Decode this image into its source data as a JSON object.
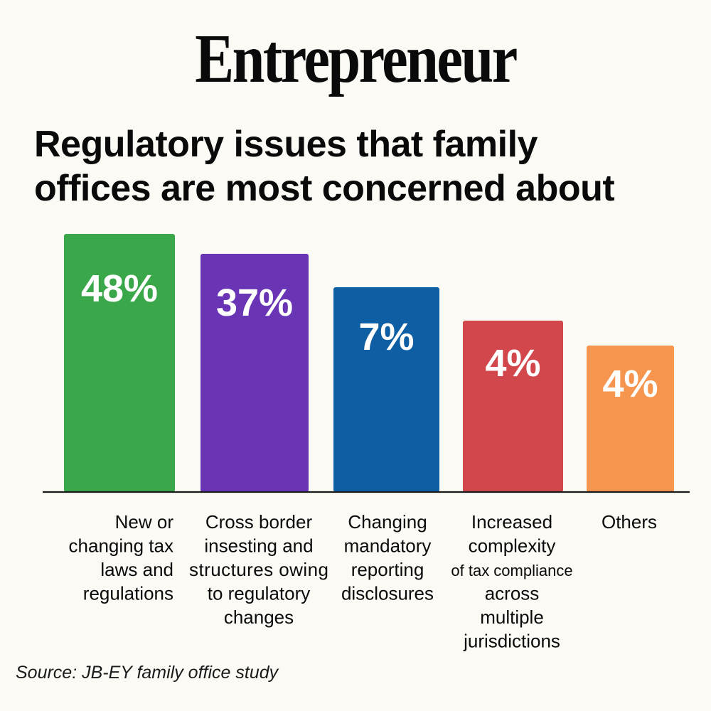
{
  "header": {
    "brand": "Entrepreneur",
    "title_line1": "Regulatory issues that family",
    "title_line2": "offices are most concerned about"
  },
  "source": "Source: JB-EY family office study",
  "chart_data": {
    "type": "bar",
    "title": "Regulatory issues that family offices are most concerned about",
    "xlabel": "",
    "ylabel": "",
    "value_suffix": "%",
    "grid": false,
    "legend": "none",
    "categories": [
      [
        "New or",
        "changing tax",
        "laws and",
        "regulations"
      ],
      [
        "Cross border",
        "insesting and",
        "structures owing",
        "to regulatory",
        "changes"
      ],
      [
        "Changing",
        "mandatory",
        "reporting",
        "disclosures"
      ],
      [
        "Increased",
        "complexity",
        "of tax compliance",
        "across",
        "multiple",
        "jurisdictions"
      ],
      [
        "Others"
      ]
    ],
    "values": [
      48,
      37,
      7,
      4,
      4
    ],
    "value_labels": [
      "48%",
      "37%",
      "7%",
      "4%",
      "4%"
    ],
    "colors": [
      "#3aa84a",
      "#6a35b4",
      "#0d5ea3",
      "#d2474b",
      "#f6954e"
    ]
  }
}
